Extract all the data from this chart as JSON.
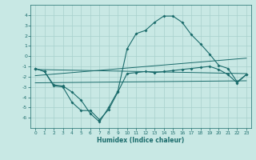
{
  "xlabel": "Humidex (Indice chaleur)",
  "xlim": [
    -0.5,
    23.5
  ],
  "ylim": [
    -7,
    5
  ],
  "xticks": [
    0,
    1,
    2,
    3,
    4,
    5,
    6,
    7,
    8,
    9,
    10,
    11,
    12,
    13,
    14,
    15,
    16,
    17,
    18,
    19,
    20,
    21,
    22,
    23
  ],
  "yticks": [
    -6,
    -5,
    -4,
    -3,
    -2,
    -1,
    0,
    1,
    2,
    3,
    4
  ],
  "bg_color": "#c8e8e4",
  "line_color": "#1a6b6b",
  "grid_color": "#a8d0cc",
  "curve_upper_x": [
    0,
    1,
    2,
    3,
    4,
    5,
    6,
    7,
    8,
    9,
    10,
    11,
    12,
    13,
    14,
    15,
    16,
    17,
    18,
    19,
    20,
    21,
    22,
    23
  ],
  "curve_upper_y": [
    -1.2,
    -1.5,
    -2.8,
    -2.9,
    -3.5,
    -4.3,
    -5.6,
    -6.4,
    -5.0,
    -3.4,
    0.7,
    2.2,
    2.5,
    3.3,
    3.9,
    3.9,
    3.3,
    2.1,
    1.2,
    0.2,
    -0.9,
    -1.2,
    -2.5,
    -1.8
  ],
  "curve_lower_x": [
    0,
    1,
    2,
    3,
    4,
    5,
    6,
    7,
    8,
    9,
    10,
    11,
    12,
    13,
    14,
    15,
    16,
    17,
    18,
    19,
    20,
    21,
    22,
    23
  ],
  "curve_lower_y": [
    -1.2,
    -1.5,
    -2.9,
    -3.0,
    -4.5,
    -5.3,
    -5.3,
    -6.2,
    -5.2,
    -3.5,
    -1.7,
    -1.6,
    -1.5,
    -1.6,
    -1.5,
    -1.4,
    -1.3,
    -1.2,
    -1.1,
    -1.0,
    -1.3,
    -1.8,
    -2.6,
    -1.8
  ],
  "line1_x": [
    0,
    23
  ],
  "line1_y": [
    -1.3,
    -1.7
  ],
  "line2_x": [
    0,
    23
  ],
  "line2_y": [
    -1.9,
    -0.2
  ],
  "line3_x": [
    0,
    23
  ],
  "line3_y": [
    -2.6,
    -2.4
  ]
}
